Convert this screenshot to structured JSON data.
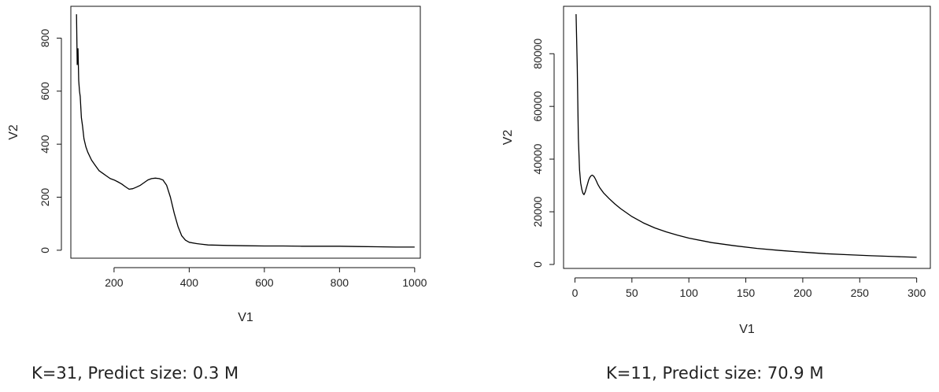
{
  "chart_data": [
    {
      "type": "line",
      "xlabel": "V1",
      "ylabel": "V2",
      "xlim": [
        85,
        1015
      ],
      "ylim": [
        -30,
        920
      ],
      "xticks": [
        200,
        400,
        600,
        800,
        1000
      ],
      "yticks": [
        0,
        200,
        400,
        600,
        800
      ],
      "grid": false,
      "legend": "none",
      "caption": "K=31, Predict size: 0.3 M",
      "series": [
        {
          "x": [
            100,
            102,
            104,
            106,
            108,
            110,
            113,
            116,
            120,
            125,
            130,
            140,
            150,
            160,
            170,
            180,
            190,
            200,
            210,
            220,
            230,
            240,
            250,
            260,
            270,
            280,
            290,
            300,
            310,
            320,
            330,
            340,
            350,
            360,
            370,
            380,
            390,
            400,
            420,
            450,
            500,
            550,
            600,
            650,
            700,
            750,
            800,
            850,
            900,
            950,
            1000
          ],
          "y": [
            890,
            700,
            760,
            640,
            600,
            580,
            500,
            470,
            420,
            390,
            370,
            340,
            320,
            300,
            290,
            280,
            270,
            265,
            258,
            250,
            240,
            230,
            232,
            238,
            245,
            255,
            265,
            270,
            272,
            270,
            265,
            245,
            200,
            140,
            90,
            55,
            38,
            30,
            25,
            20,
            18,
            17,
            16,
            16,
            15,
            15,
            15,
            14,
            13,
            12,
            12
          ]
        }
      ]
    },
    {
      "type": "line",
      "xlabel": "V1",
      "ylabel": "V2",
      "xlim": [
        -10,
        312
      ],
      "ylim": [
        -1500,
        98000
      ],
      "xticks": [
        0,
        50,
        100,
        150,
        200,
        250,
        300
      ],
      "yticks": [
        0,
        20000,
        40000,
        60000,
        80000
      ],
      "grid": false,
      "legend": "none",
      "caption": "K=11, Predict size: 70.9 M",
      "series": [
        {
          "x": [
            1,
            2,
            3,
            4,
            5,
            6,
            7,
            8,
            9,
            10,
            11,
            12,
            13,
            14,
            15,
            16,
            17,
            18,
            19,
            20,
            22,
            25,
            30,
            35,
            40,
            50,
            60,
            70,
            80,
            90,
            100,
            120,
            140,
            160,
            180,
            200,
            220,
            240,
            260,
            280,
            300
          ],
          "y": [
            95000,
            75000,
            48000,
            36000,
            31000,
            28500,
            27000,
            26500,
            27500,
            29000,
            30500,
            32000,
            33000,
            33600,
            33900,
            33700,
            33200,
            32400,
            31500,
            30500,
            29000,
            27200,
            25000,
            23000,
            21200,
            18200,
            15800,
            13900,
            12400,
            11100,
            10000,
            8300,
            7100,
            6100,
            5300,
            4700,
            4100,
            3700,
            3300,
            3000,
            2700
          ]
        }
      ]
    }
  ]
}
